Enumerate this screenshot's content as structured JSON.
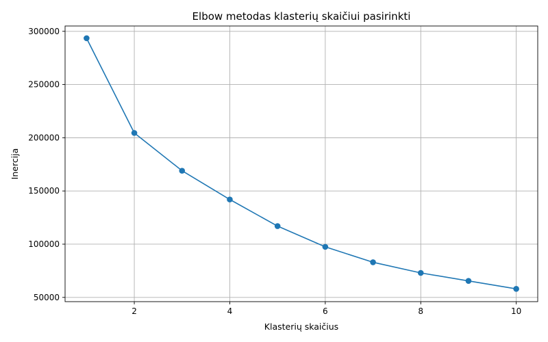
{
  "chart_data": {
    "type": "line",
    "title": "Elbow metodas klasterių skaičiui pasirinkti",
    "xlabel": "Klasterių skaičius",
    "ylabel": "Inercija",
    "x": [
      1,
      2,
      3,
      4,
      5,
      6,
      7,
      8,
      9,
      10
    ],
    "series": [
      {
        "name": "Inercija",
        "color": "#1f77b4",
        "marker": "circle",
        "values": [
          293500,
          204500,
          169000,
          142000,
          117000,
          97500,
          83000,
          73000,
          65500,
          58000
        ]
      }
    ],
    "xlim": [
      0.55,
      10.45
    ],
    "ylim": [
      46000,
      305000
    ],
    "xticks": [
      2,
      4,
      6,
      8,
      10
    ],
    "xtick_labels": [
      "2",
      "4",
      "6",
      "8",
      "10"
    ],
    "yticks": [
      50000,
      100000,
      150000,
      200000,
      250000,
      300000
    ],
    "ytick_labels": [
      "50000",
      "100000",
      "150000",
      "200000",
      "250000",
      "300000"
    ],
    "grid": true
  }
}
